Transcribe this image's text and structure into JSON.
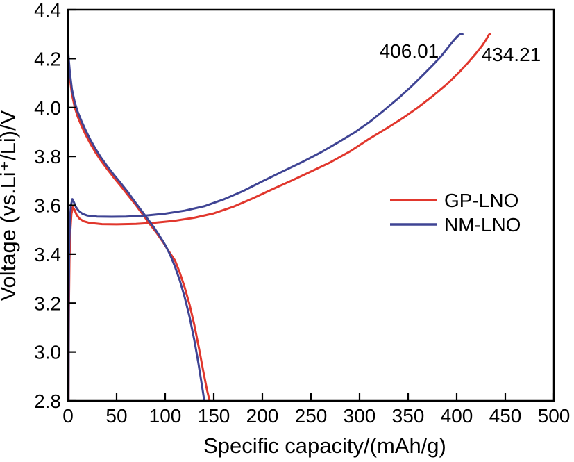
{
  "chart_data": {
    "type": "line",
    "title": "",
    "xlabel": "Specific capacity/(mAh/g)",
    "ylabel": "Voltage (vs.Li⁺/Li)/V",
    "xlim": [
      0,
      500
    ],
    "ylim": [
      2.8,
      4.4
    ],
    "grid": false,
    "background_color": "#ffffff",
    "axis_color": "#000000",
    "xticks": [
      0,
      50,
      100,
      150,
      200,
      250,
      300,
      350,
      400,
      450,
      500
    ],
    "xtick_labels": [
      "0",
      "50",
      "100",
      "150",
      "200",
      "250",
      "300",
      "350",
      "400",
      "450",
      "500"
    ],
    "yticks": [
      2.8,
      3.0,
      3.2,
      3.4,
      3.6,
      3.8,
      4.0,
      4.2,
      4.4
    ],
    "ytick_labels": [
      "2.8",
      "3.0",
      "3.2",
      "3.4",
      "3.6",
      "3.8",
      "4.0",
      "4.2",
      "4.4"
    ],
    "legend": {
      "position": "middle-right",
      "entries": [
        {
          "label": "GP-LNO",
          "color": "#e1372d"
        },
        {
          "label": "NM-LNO",
          "color": "#3f4494"
        }
      ]
    },
    "annotations": [
      {
        "text": "406.01",
        "x": 351,
        "y": 4.232,
        "color": "#3f4494"
      },
      {
        "text": "434.21",
        "x": 456,
        "y": 4.218,
        "color": "#e1372d"
      }
    ],
    "series": [
      {
        "name": "GP-LNO",
        "color": "#e1372d",
        "charge_end_capacity_mAh_g": 434.21,
        "branches": {
          "charge": [
            [
              0.5,
              2.8
            ],
            [
              0.9,
              3.18
            ],
            [
              1.5,
              3.38
            ],
            [
              2.5,
              3.5
            ],
            [
              3.5,
              3.565
            ],
            [
              5,
              3.592
            ],
            [
              6.5,
              3.583
            ],
            [
              9,
              3.56
            ],
            [
              12,
              3.545
            ],
            [
              16,
              3.535
            ],
            [
              22,
              3.528
            ],
            [
              35,
              3.523
            ],
            [
              50,
              3.522
            ],
            [
              70,
              3.524
            ],
            [
              90,
              3.529
            ],
            [
              110,
              3.537
            ],
            [
              130,
              3.549
            ],
            [
              150,
              3.567
            ],
            [
              170,
              3.594
            ],
            [
              190,
              3.628
            ],
            [
              210,
              3.665
            ],
            [
              230,
              3.701
            ],
            [
              250,
              3.738
            ],
            [
              270,
              3.776
            ],
            [
              290,
              3.82
            ],
            [
              310,
              3.872
            ],
            [
              330,
              3.92
            ],
            [
              345,
              3.958
            ],
            [
              360,
              4.0
            ],
            [
              375,
              4.046
            ],
            [
              390,
              4.096
            ],
            [
              402,
              4.142
            ],
            [
              412,
              4.185
            ],
            [
              420,
              4.222
            ],
            [
              426,
              4.252
            ],
            [
              430,
              4.276
            ],
            [
              432,
              4.29
            ],
            [
              433.2,
              4.298
            ],
            [
              434.21,
              4.3
            ]
          ],
          "discharge": [
            [
              0,
              4.22
            ],
            [
              0.8,
              4.175
            ],
            [
              2,
              4.12
            ],
            [
              4,
              4.055
            ],
            [
              7,
              4.0
            ],
            [
              10,
              3.962
            ],
            [
              14,
              3.924
            ],
            [
              18,
              3.89
            ],
            [
              23,
              3.852
            ],
            [
              28,
              3.818
            ],
            [
              34,
              3.782
            ],
            [
              40,
              3.75
            ],
            [
              47,
              3.714
            ],
            [
              54,
              3.68
            ],
            [
              62,
              3.64
            ],
            [
              70,
              3.6
            ],
            [
              77,
              3.562
            ],
            [
              84,
              3.524
            ],
            [
              91,
              3.488
            ],
            [
              98,
              3.448
            ],
            [
              104,
              3.41
            ],
            [
              110,
              3.375
            ],
            [
              115,
              3.325
            ],
            [
              120,
              3.265
            ],
            [
              125,
              3.195
            ],
            [
              130,
              3.11
            ],
            [
              135,
              3.01
            ],
            [
              139,
              2.925
            ],
            [
              143,
              2.845
            ],
            [
              145.7,
              2.8
            ]
          ]
        }
      },
      {
        "name": "NM-LNO",
        "color": "#3f4494",
        "charge_end_capacity_mAh_g": 406.01,
        "branches": {
          "charge": [
            [
              0.5,
              2.8
            ],
            [
              0.8,
              3.22
            ],
            [
              1.3,
              3.44
            ],
            [
              2,
              3.54
            ],
            [
              3,
              3.6
            ],
            [
              4.5,
              3.625
            ],
            [
              6,
              3.613
            ],
            [
              8,
              3.594
            ],
            [
              11,
              3.577
            ],
            [
              15,
              3.565
            ],
            [
              20,
              3.558
            ],
            [
              30,
              3.554
            ],
            [
              45,
              3.553
            ],
            [
              60,
              3.554
            ],
            [
              80,
              3.558
            ],
            [
              100,
              3.566
            ],
            [
              120,
              3.578
            ],
            [
              140,
              3.596
            ],
            [
              160,
              3.624
            ],
            [
              180,
              3.658
            ],
            [
              200,
              3.698
            ],
            [
              220,
              3.737
            ],
            [
              240,
              3.775
            ],
            [
              260,
              3.816
            ],
            [
              280,
              3.862
            ],
            [
              295,
              3.898
            ],
            [
              310,
              3.94
            ],
            [
              325,
              3.988
            ],
            [
              340,
              4.038
            ],
            [
              353,
              4.085
            ],
            [
              365,
              4.132
            ],
            [
              375,
              4.172
            ],
            [
              384,
              4.21
            ],
            [
              391,
              4.245
            ],
            [
              396,
              4.27
            ],
            [
              400,
              4.288
            ],
            [
              402,
              4.296
            ],
            [
              403.5,
              4.3
            ],
            [
              406.01,
              4.3
            ]
          ],
          "discharge": [
            [
              0,
              4.24
            ],
            [
              0.8,
              4.195
            ],
            [
              2,
              4.14
            ],
            [
              4,
              4.075
            ],
            [
              7,
              4.02
            ],
            [
              10,
              3.982
            ],
            [
              14,
              3.943
            ],
            [
              18,
              3.908
            ],
            [
              23,
              3.868
            ],
            [
              28,
              3.833
            ],
            [
              34,
              3.795
            ],
            [
              40,
              3.762
            ],
            [
              47,
              3.726
            ],
            [
              54,
              3.692
            ],
            [
              62,
              3.652
            ],
            [
              70,
              3.608
            ],
            [
              76,
              3.576
            ],
            [
              82,
              3.544
            ],
            [
              88,
              3.512
            ],
            [
              94,
              3.476
            ],
            [
              100,
              3.438
            ],
            [
              105,
              3.398
            ],
            [
              110,
              3.35
            ],
            [
              115,
              3.293
            ],
            [
              120,
              3.225
            ],
            [
              125,
              3.145
            ],
            [
              130,
              3.048
            ],
            [
              134,
              2.958
            ],
            [
              137,
              2.883
            ],
            [
              139,
              2.833
            ],
            [
              140.2,
              2.8
            ]
          ]
        }
      }
    ]
  }
}
